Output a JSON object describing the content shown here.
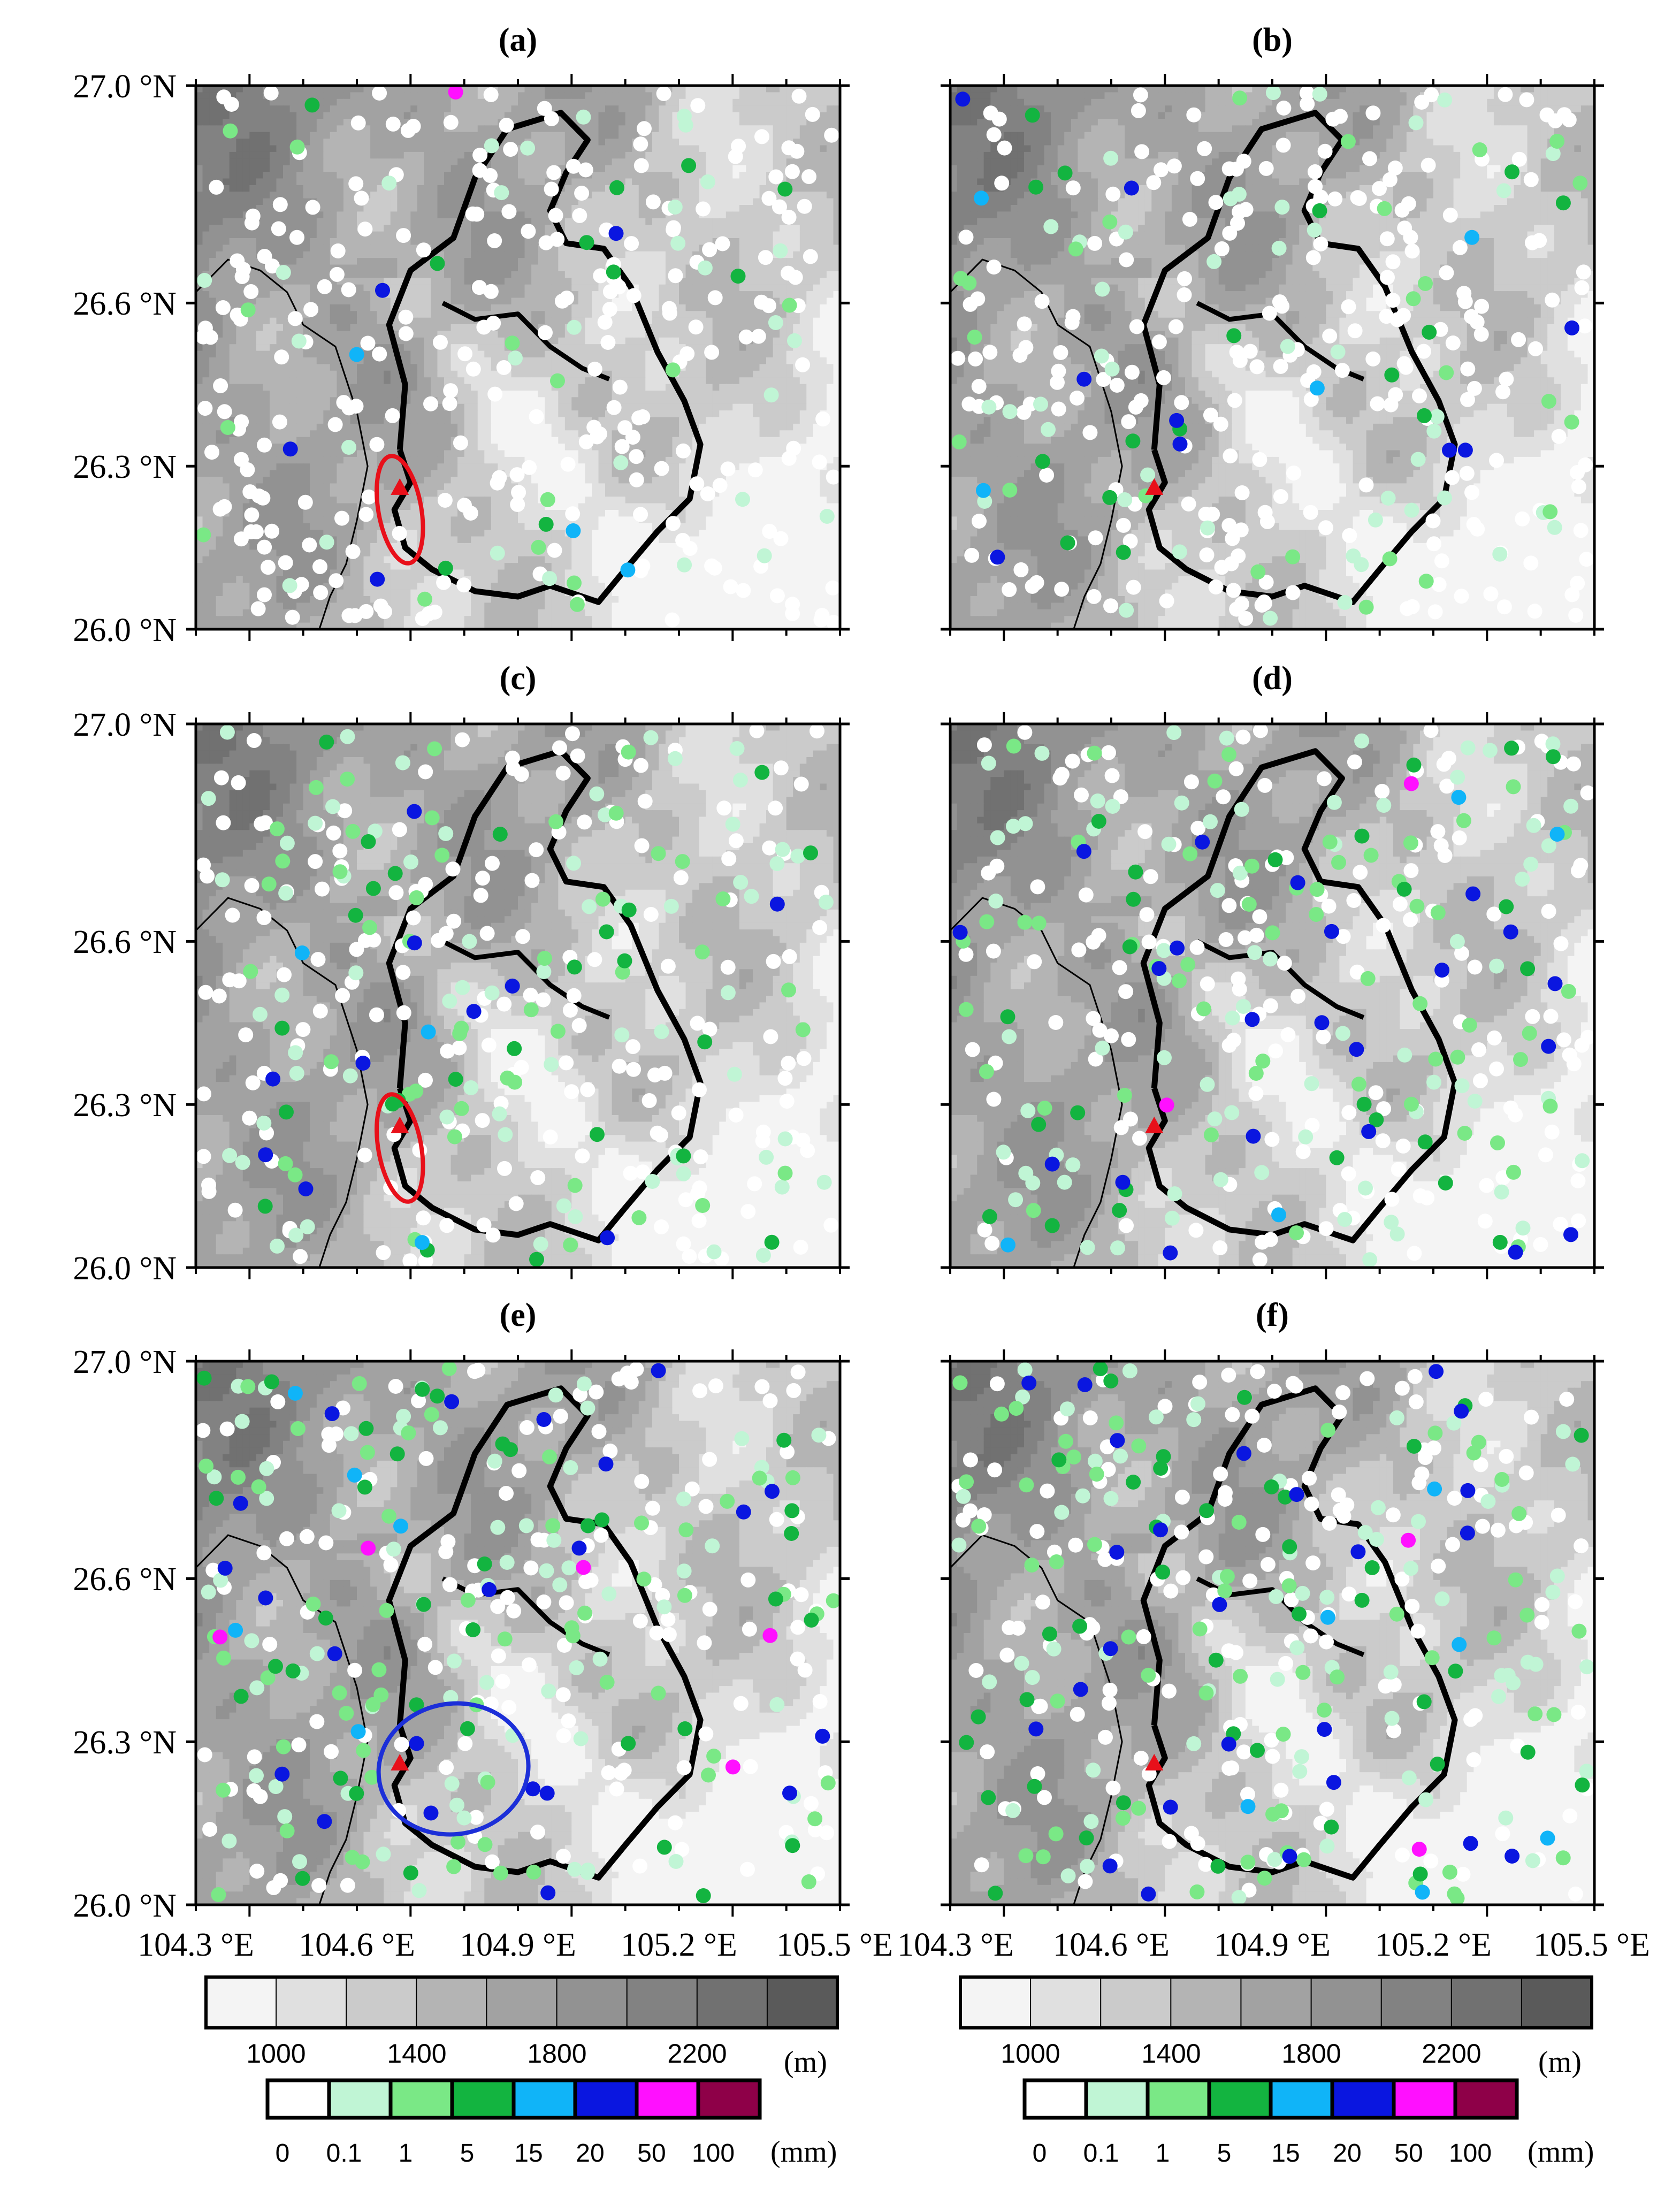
{
  "figure": {
    "axes": {
      "lat_ticks": [
        27.0,
        26.6,
        26.3,
        26.0
      ],
      "lat_labels": [
        "27.0 °N",
        "26.6 °N",
        "26.3 °N",
        "26.0 °N"
      ],
      "lon_ticks": [
        104.3,
        104.6,
        104.9,
        105.2,
        105.5
      ],
      "lon_labels": [
        "104.3 °E",
        "104.6 °E",
        "104.9 °E",
        "105.2 °E",
        "105.5 °E"
      ],
      "lat_range": [
        26.0,
        27.0
      ],
      "lon_range": [
        104.3,
        105.5
      ]
    },
    "panels": [
      {
        "label": "(a)",
        "highlight": {
          "type": "ellipse",
          "color": "#e8101a",
          "center": [
            104.68,
            26.22
          ],
          "semi_axes": [
            0.04,
            0.1
          ]
        },
        "station_counts": {
          "c0": 260,
          "c1": 30,
          "c2": 14,
          "c3": 10,
          "c4": 3,
          "c5": 4,
          "c6": 1,
          "c7": 0
        }
      },
      {
        "label": "(b)",
        "highlight": null,
        "station_counts": {
          "c0": 250,
          "c1": 45,
          "c2": 25,
          "c3": 16,
          "c4": 4,
          "c5": 9,
          "c6": 0,
          "c7": 0
        }
      },
      {
        "label": "(c)",
        "highlight": {
          "type": "ellipse",
          "color": "#e8101a",
          "center": [
            104.68,
            26.22
          ],
          "semi_axes": [
            0.04,
            0.1
          ]
        },
        "station_counts": {
          "c0": 190,
          "c1": 70,
          "c2": 45,
          "c3": 25,
          "c4": 3,
          "c5": 10,
          "c6": 0,
          "c7": 0
        }
      },
      {
        "label": "(d)",
        "highlight": null,
        "station_counts": {
          "c0": 170,
          "c1": 75,
          "c2": 55,
          "c3": 25,
          "c4": 4,
          "c5": 22,
          "c6": 2,
          "c7": 0
        }
      },
      {
        "label": "(e)",
        "highlight": {
          "type": "ellipse",
          "color": "#1c2fd8",
          "center": [
            104.78,
            26.25
          ],
          "semi_axes": [
            0.14,
            0.12
          ]
        },
        "station_counts": {
          "c0": 150,
          "c1": 70,
          "c2": 60,
          "c3": 35,
          "c4": 5,
          "c5": 22,
          "c6": 5,
          "c7": 0
        }
      },
      {
        "label": "(f)",
        "highlight": null,
        "station_counts": {
          "c0": 170,
          "c1": 70,
          "c2": 60,
          "c3": 40,
          "c4": 6,
          "c5": 25,
          "c6": 2,
          "c7": 0
        }
      }
    ],
    "station_marker": {
      "shape": "triangle",
      "color": "#e8101a",
      "lon": 104.68,
      "lat": 26.26
    },
    "elevation_colorbar": {
      "unit": "(m)",
      "labels": [
        "1000",
        "1400",
        "1800",
        "2200"
      ],
      "colors": [
        "#f4f4f4",
        "#e0e0e0",
        "#cbcbcb",
        "#b4b4b4",
        "#a2a2a2",
        "#929292",
        "#828282",
        "#717171",
        "#5a5a5a"
      ]
    },
    "precip_colorbar": {
      "unit": "(mm)",
      "labels": [
        "0",
        "0.1",
        "1",
        "5",
        "15",
        "20",
        "50",
        "100"
      ],
      "colors": [
        "#ffffff",
        "#c0f5d5",
        "#7ae886",
        "#13b440",
        "#10b4f8",
        "#0a16e0",
        "#ff10ff",
        "#8e0048"
      ]
    }
  }
}
